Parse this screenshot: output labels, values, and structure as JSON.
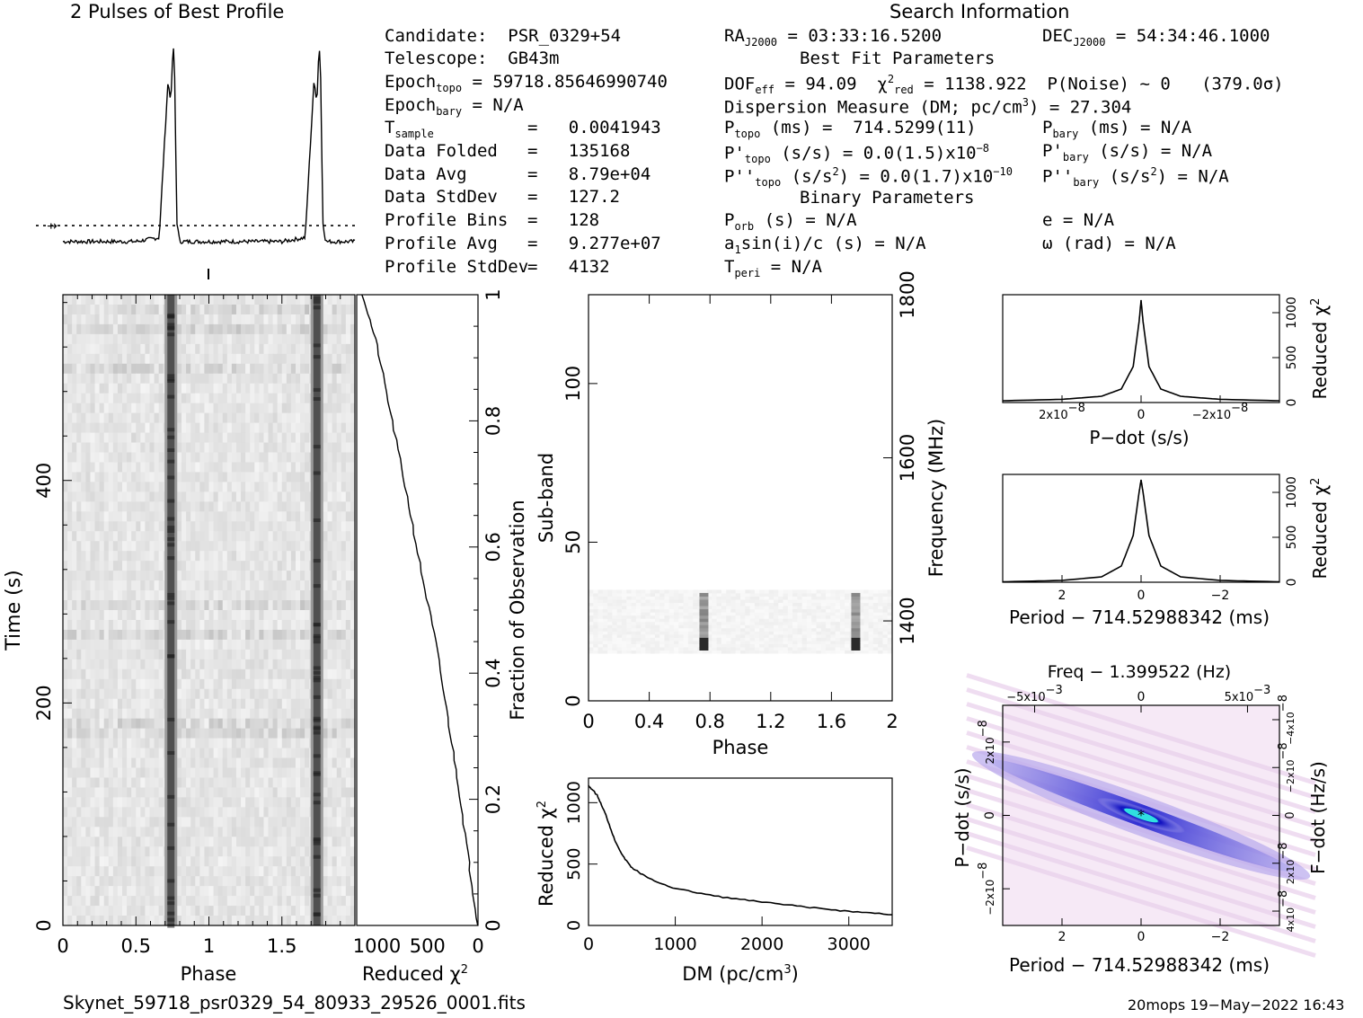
{
  "header": {
    "profile_title": "2 Pulses of Best Profile",
    "search_title": "Search Information",
    "candidate_line": "Candidate:  PSR_0329+54",
    "telescope_line": "Telescope:  GB43m",
    "epoch_topo": {
      "label": "Epoch",
      "sub": "topo",
      "value": " = 59718.85646990740"
    },
    "epoch_bary": {
      "label": "Epoch",
      "sub": "bary",
      "value": " = N/A"
    },
    "stats": [
      {
        "label": "T",
        "sub": "sample",
        "value": "=   0.0041943"
      },
      {
        "label": "Data Folded",
        "sub": "",
        "value": "=   135168"
      },
      {
        "label": "Data Avg",
        "sub": "",
        "value": "=   8.79e+04"
      },
      {
        "label": "Data StdDev",
        "sub": "",
        "value": "=   127.2"
      },
      {
        "label": "Profile Bins",
        "sub": "",
        "value": "=   128"
      },
      {
        "label": "Profile Avg",
        "sub": "",
        "value": "=   9.277e+07"
      },
      {
        "label": "Profile StdDev",
        "sub": "",
        "value": "=   4132"
      }
    ],
    "ra": {
      "label": "RA",
      "sub": "J2000",
      "value": " = 03:33:16.5200"
    },
    "dec": {
      "label": "DEC",
      "sub": "J2000",
      "value": " = 54:34:46.1000"
    },
    "best_fit_title": "Best Fit Parameters",
    "dof": {
      "label": "DOF",
      "sub": "eff",
      "value": " = 94.09  "
    },
    "chi2": {
      "label": "χ",
      "sup": "2",
      "sub": "red",
      "value": " = 1138.922  P(Noise) ~ 0   (379.0σ)"
    },
    "dm_line": "Dispersion Measure (DM; pc/cm",
    "dm_sup": "3",
    "dm_value": ") = 27.304",
    "ptopo": {
      "label": "P",
      "sub": "topo",
      "value": " (ms) =  714.5299(11)"
    },
    "pdtopo": {
      "label": "P'",
      "sub": "topo",
      "value": " (s/s) = 0.0(1.5)x10",
      "sup": "−8"
    },
    "pddtopo": {
      "label": "P''",
      "sub": "topo",
      "value": " (s/s",
      "sup": "2",
      "value2": ") = 0.0(1.7)x10",
      "sup2": "−10"
    },
    "pbary": {
      "label": "P",
      "sub": "bary",
      "value": " (ms) = N/A"
    },
    "pdbary": {
      "label": "P'",
      "sub": "bary",
      "value": " (s/s) = N/A"
    },
    "pddbary": {
      "label": "P''",
      "sub": "bary",
      "value": " (s/s",
      "sup": "2",
      "value2": ") = N/A"
    },
    "binary_title": "Binary Parameters",
    "porb": {
      "label": "P",
      "sub": "orb",
      "value": " (s) = N/A"
    },
    "a1": {
      "label": "a",
      "sub": "1",
      "value": "sin(i)/c (s) = N/A"
    },
    "tperi": {
      "label": "T",
      "sub": "peri",
      "value": " = N/A"
    },
    "ecc": "e = N/A",
    "omega": "ω (rad) = N/A"
  },
  "footer": {
    "filename": "Skynet_59718_psr0329_54_80933_29526_0001.fits",
    "stamp": "20mops 19−May−2022 16:43"
  },
  "colors": {
    "grey_band": "#505050",
    "cmap_low": "#f6e9f6",
    "cmap_mid": "#1010d0",
    "cmap_high": "#30e0e0"
  },
  "chart_data": [
    {
      "id": "profile",
      "type": "line",
      "title": "2 Pulses of Best Profile",
      "x": [
        0,
        0.5,
        0.66,
        0.7,
        0.72,
        0.74,
        0.755,
        0.765,
        0.78,
        0.8,
        1.0,
        1.5,
        1.66,
        1.7,
        1.72,
        1.74,
        1.755,
        1.765,
        1.78,
        1.8,
        2.0
      ],
      "y": [
        0,
        0,
        0.02,
        0.55,
        0.8,
        0.7,
        1.0,
        0.85,
        0.1,
        0,
        0,
        0,
        0.02,
        0.55,
        0.8,
        0.7,
        1.0,
        0.85,
        0.1,
        0,
        0
      ],
      "ylim": [
        -0.05,
        1.05
      ],
      "baseline": 0.02
    },
    {
      "id": "time-phase",
      "type": "heatmap",
      "xlabel": "Phase",
      "ylabel": "Time (s)",
      "xticks": [
        "0",
        "0.5",
        "1",
        "1.5"
      ],
      "yticks": [
        "0",
        "200",
        "400"
      ],
      "xlim": [
        0,
        2
      ],
      "ylim": [
        0,
        567
      ],
      "pulse_phase": [
        0.74,
        1.74
      ]
    },
    {
      "id": "time-chi2",
      "type": "line",
      "xlabel": "Reduced χ",
      "xlabel_sup": "2",
      "ylabel": "Fraction of Observation",
      "xticks": [
        "1000",
        "500",
        "0"
      ],
      "yticks": [
        "0",
        "0.2",
        "0.4",
        "0.6",
        "0.8",
        "1"
      ],
      "x": [
        1140,
        1000,
        850,
        700,
        560,
        420,
        300,
        190,
        90,
        0
      ],
      "y": [
        1.0,
        0.92,
        0.8,
        0.68,
        0.56,
        0.45,
        0.33,
        0.22,
        0.1,
        0.0
      ],
      "xlim": [
        1200,
        0
      ]
    },
    {
      "id": "subband-phase",
      "type": "heatmap",
      "xlabel": "Phase",
      "ylabel": "Sub-band",
      "ylabel2": "Frequency (MHz)",
      "xticks": [
        "0",
        "0.4",
        "0.8",
        "1.2",
        "1.6",
        "2"
      ],
      "yticks": [
        "0",
        "50",
        "100"
      ],
      "yticks2": [
        "1400",
        "1600",
        "1800"
      ],
      "xlim": [
        0,
        2
      ],
      "ylim": [
        0,
        128
      ],
      "active_subbands": [
        15,
        35
      ],
      "pulse_phase": [
        0.76,
        1.76
      ]
    },
    {
      "id": "dm-chi2",
      "type": "line",
      "xlabel": "DM (pc/cm",
      "xlabel_sup": "3",
      "xlabel_end": ")",
      "ylabel": "Reduced χ",
      "ylabel_sup": "2",
      "xticks": [
        "0",
        "1000",
        "2000",
        "3000"
      ],
      "yticks": [
        "0",
        "500",
        "1000"
      ],
      "x": [
        0,
        100,
        200,
        300,
        400,
        500,
        700,
        1000,
        1500,
        2000,
        2500,
        3000,
        3500
      ],
      "y": [
        1140,
        1060,
        900,
        700,
        560,
        470,
        380,
        300,
        235,
        190,
        150,
        115,
        90
      ],
      "xlim": [
        0,
        3500
      ],
      "ylim": [
        0,
        1200
      ]
    },
    {
      "id": "pdot-chi2",
      "type": "line",
      "xlabel": "P−dot (s/s)",
      "ylabel": "Reduced χ",
      "ylabel_sup": "2",
      "xticks": [
        "2x10",
        "0",
        "−2x10"
      ],
      "xtick_sup": "−8",
      "yticks": [
        "0",
        "500",
        "1000"
      ],
      "x": [
        3.5,
        2,
        1,
        0.5,
        0.2,
        0.05,
        0,
        -0.05,
        -0.2,
        -0.5,
        -1,
        -2,
        -3.5
      ],
      "y": [
        20,
        35,
        70,
        150,
        400,
        900,
        1140,
        900,
        400,
        150,
        70,
        35,
        20
      ],
      "xlim": [
        3.5,
        -3.5
      ],
      "ylim": [
        0,
        1200
      ]
    },
    {
      "id": "period-chi2",
      "type": "line",
      "xlabel": "Period − 714.52988342 (ms)",
      "ylabel": "Reduced χ",
      "ylabel_sup": "2",
      "xticks": [
        "2",
        "0",
        "−2"
      ],
      "yticks": [
        "0",
        "500",
        "1000"
      ],
      "x": [
        3.5,
        2,
        1,
        0.5,
        0.2,
        0.05,
        0,
        -0.05,
        -0.2,
        -0.5,
        -1,
        -2,
        -3.5
      ],
      "y": [
        5,
        20,
        60,
        180,
        520,
        1000,
        1140,
        1000,
        520,
        180,
        60,
        20,
        5
      ],
      "xlim": [
        3.5,
        -3.5
      ],
      "ylim": [
        0,
        1200
      ]
    },
    {
      "id": "period-pdot",
      "type": "heatmap",
      "title": "Freq − 1.399522 (Hz)",
      "xlabel": "Period − 714.52988342 (ms)",
      "ylabel": "P−dot (s/s)",
      "ylabel2": "F−dot (Hz/s)",
      "xticks": [
        "2",
        "0",
        "−2"
      ],
      "xticks_top": [
        "−5x10",
        "0",
        "5x10"
      ],
      "xticks_top_sup": "−3",
      "yticks": [
        "2x10",
        "0",
        "−2x10"
      ],
      "ytick_sup": "−8",
      "yticks2": [
        "−4x10",
        "−2x10",
        "0",
        "2x10",
        "4x10"
      ],
      "ytick2_sup": "−8",
      "xlim": [
        3.5,
        -3.5
      ],
      "ylim": [
        3,
        -3
      ]
    }
  ]
}
